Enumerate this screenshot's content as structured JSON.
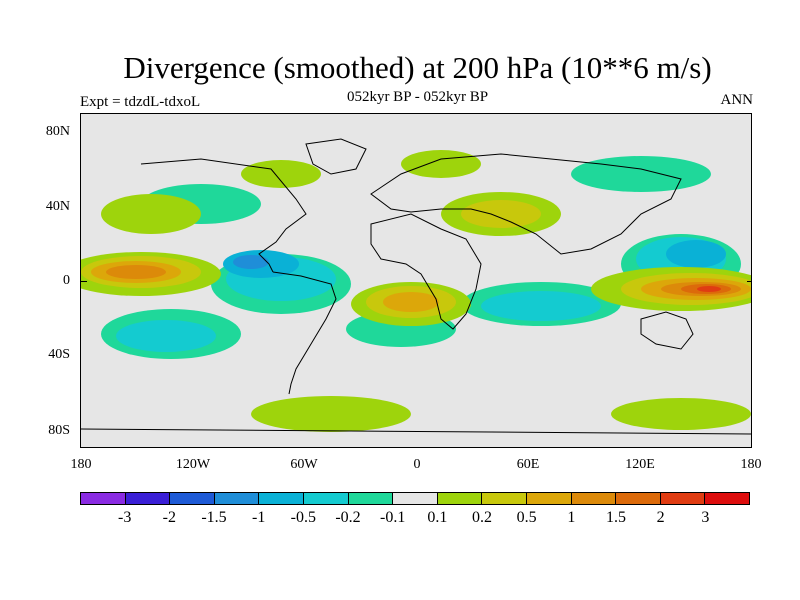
{
  "figure": {
    "title": "Divergence (smoothed) at 200 hPa (10**6 m/s)",
    "subtitle": "052kyr BP - 052kyr BP",
    "left_label": "Expt = tdzdL-tdxoL",
    "right_label": "ANN"
  },
  "axes": {
    "lat_ticks": [
      "80N",
      "40N",
      "0",
      "40S",
      "80S"
    ],
    "lon_ticks": [
      "180",
      "120W",
      "60W",
      "0",
      "60E",
      "120E",
      "180"
    ]
  },
  "colorbar": {
    "colors": [
      "#8a2be2",
      "#3a1fd6",
      "#1e5ad6",
      "#1f8ed8",
      "#0ab1d6",
      "#14cbd0",
      "#1fd89a",
      "#e6e6e6",
      "#9ed40c",
      "#c8c80c",
      "#dca70a",
      "#dc8a0a",
      "#dc6a0a",
      "#e03c12",
      "#dd0d0d"
    ],
    "labels": [
      "-3",
      "-2",
      "-1.5",
      "-1",
      "-0.5",
      "-0.2",
      "-0.1",
      "0.1",
      "0.2",
      "0.5",
      "1",
      "1.5",
      "2",
      "3"
    ]
  }
}
